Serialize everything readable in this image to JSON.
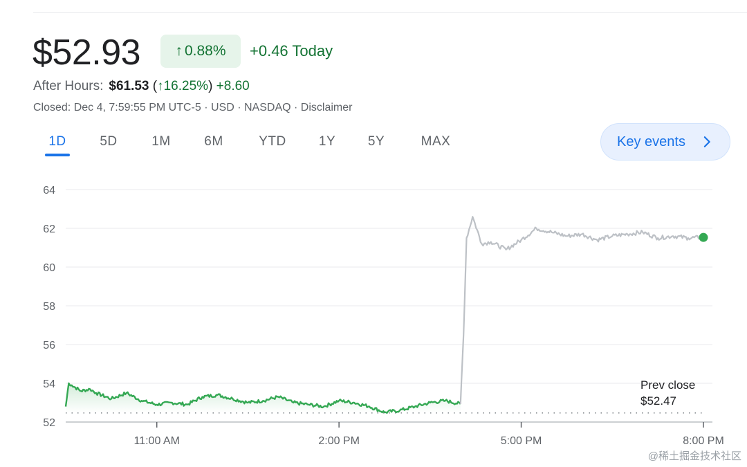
{
  "quote": {
    "price": "$52.93",
    "change_pct": "0.88%",
    "change_today": "+0.46 Today",
    "after_hours_label": "After Hours:",
    "after_hours_price": "$61.53",
    "after_hours_pct": "16.25%",
    "after_hours_change": "+8.60",
    "closed_info": "Closed: Dec 4, 7:59:55 PM UTC-5 · USD · NASDAQ · ",
    "disclaimer": "Disclaimer"
  },
  "tabs": [
    {
      "label": "1D",
      "active": true
    },
    {
      "label": "5D",
      "active": false
    },
    {
      "label": "1M",
      "active": false
    },
    {
      "label": "6M",
      "active": false
    },
    {
      "label": "YTD",
      "active": false
    },
    {
      "label": "1Y",
      "active": false
    },
    {
      "label": "5Y",
      "active": false
    },
    {
      "label": "MAX",
      "active": false
    }
  ],
  "key_events_label": "Key events",
  "icons": {
    "up_arrow": "arrow-up-icon",
    "chevron": "chevron-right-icon"
  },
  "colors": {
    "up": "#137333",
    "line_green": "#34a853",
    "line_grey": "#bdc1c6",
    "accent": "#1a73e8"
  },
  "watermark": "@稀土掘金技术社区",
  "chart_data": {
    "type": "line",
    "x_ticks": [
      "11:00 AM",
      "2:00 PM",
      "5:00 PM",
      "8:00 PM"
    ],
    "y_ticks": [
      52,
      54,
      56,
      58,
      60,
      62,
      64
    ],
    "ylim": [
      52,
      64
    ],
    "x_range": [
      "9:30 AM",
      "8:00 PM"
    ],
    "prev_close_label": "Prev close",
    "prev_close_value": "$52.47",
    "prev_close": 52.47,
    "series": [
      {
        "segment": "regular",
        "x": [
          9.5,
          9.55,
          9.6,
          9.75,
          9.9,
          10.0,
          10.25,
          10.5,
          10.75,
          11.0,
          11.25,
          11.5,
          11.75,
          12.0,
          12.25,
          12.5,
          12.75,
          13.0,
          13.25,
          13.5,
          13.75,
          14.0,
          14.25,
          14.5,
          14.75,
          15.0,
          15.25,
          15.5,
          15.75,
          16.0
        ],
        "y": [
          52.8,
          54.0,
          53.9,
          53.6,
          53.7,
          53.5,
          53.2,
          53.5,
          53.1,
          52.9,
          53.0,
          52.9,
          53.3,
          53.4,
          53.2,
          53.0,
          53.1,
          53.3,
          53.0,
          52.9,
          52.8,
          53.1,
          53.0,
          52.8,
          52.5,
          52.6,
          52.8,
          53.0,
          53.1,
          52.93
        ]
      },
      {
        "segment": "after-hours",
        "x": [
          16.0,
          16.05,
          16.1,
          16.2,
          16.35,
          16.5,
          16.75,
          17.0,
          17.25,
          17.5,
          17.75,
          18.0,
          18.25,
          18.5,
          18.75,
          19.0,
          19.25,
          19.5,
          19.75,
          20.0
        ],
        "y": [
          52.93,
          56.5,
          61.5,
          62.6,
          61.2,
          61.3,
          60.9,
          61.4,
          62.0,
          61.8,
          61.6,
          61.7,
          61.4,
          61.6,
          61.7,
          61.8,
          61.5,
          61.6,
          61.5,
          61.53
        ]
      }
    ]
  }
}
